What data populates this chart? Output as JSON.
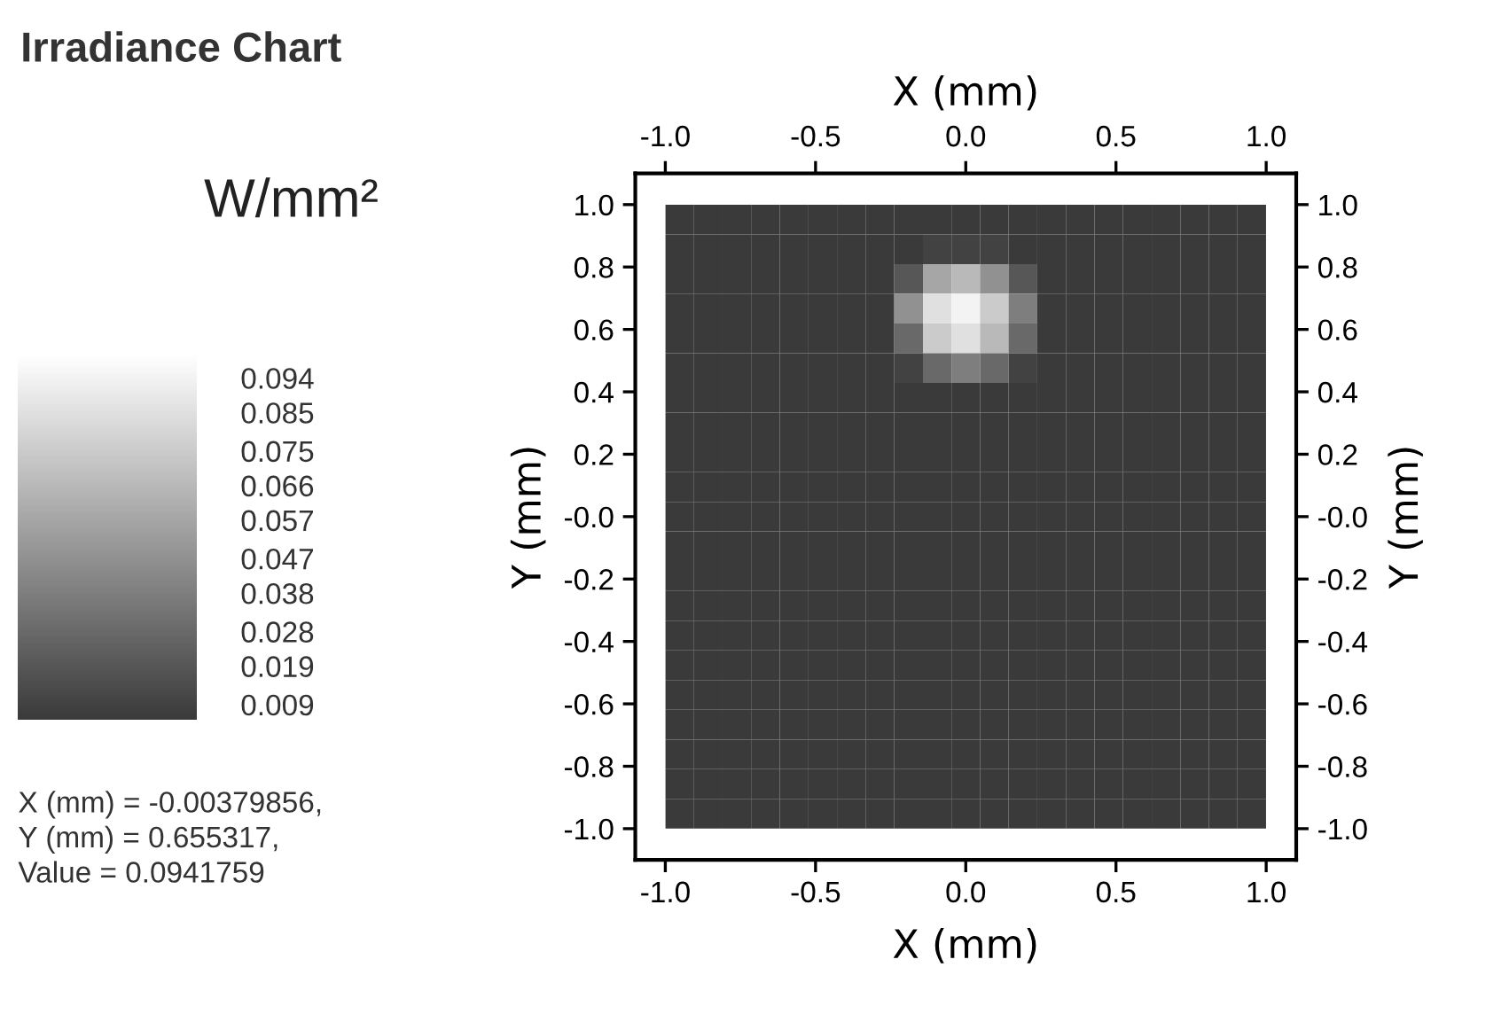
{
  "chart_data": {
    "type": "heatmap",
    "title": "Irradiance Chart",
    "xlabel": "X (mm)",
    "x2label": "X (mm)",
    "ylabel": "Y (mm)",
    "y2label": "Y (mm)",
    "clabel": "W/mm²",
    "x": [
      -0.952,
      -0.857,
      -0.762,
      -0.667,
      -0.571,
      -0.476,
      -0.381,
      -0.286,
      -0.19,
      -0.095,
      0.0,
      0.095,
      0.19,
      0.286,
      0.381,
      0.476,
      0.571,
      0.667,
      0.762,
      0.857,
      0.952
    ],
    "y": [
      0.952,
      0.857,
      0.762,
      0.667,
      0.571,
      0.476,
      0.381,
      0.286,
      0.19,
      0.095,
      0.0,
      -0.095,
      -0.19,
      -0.286,
      -0.381,
      -0.476,
      -0.571,
      -0.667,
      -0.762,
      -0.857,
      -0.952
    ],
    "cells": [
      [
        0.005,
        0.005,
        0.005,
        0.005,
        0.005,
        0.005,
        0.005,
        0.005,
        0.005,
        0.005,
        0.005,
        0.005,
        0.005,
        0.005,
        0.005,
        0.005,
        0.005,
        0.005,
        0.005,
        0.005,
        0.005
      ],
      [
        0.005,
        0.005,
        0.005,
        0.005,
        0.005,
        0.005,
        0.005,
        0.005,
        0.005,
        0.009,
        0.009,
        0.009,
        0.005,
        0.005,
        0.005,
        0.005,
        0.005,
        0.005,
        0.005,
        0.005,
        0.005
      ],
      [
        0.005,
        0.005,
        0.005,
        0.005,
        0.005,
        0.005,
        0.005,
        0.005,
        0.019,
        0.057,
        0.066,
        0.047,
        0.019,
        0.005,
        0.005,
        0.005,
        0.005,
        0.005,
        0.005,
        0.005,
        0.005
      ],
      [
        0.005,
        0.005,
        0.005,
        0.005,
        0.005,
        0.005,
        0.005,
        0.005,
        0.047,
        0.085,
        0.094,
        0.075,
        0.038,
        0.005,
        0.005,
        0.005,
        0.005,
        0.005,
        0.005,
        0.005,
        0.005
      ],
      [
        0.005,
        0.005,
        0.005,
        0.005,
        0.005,
        0.005,
        0.005,
        0.005,
        0.028,
        0.075,
        0.085,
        0.066,
        0.028,
        0.005,
        0.005,
        0.005,
        0.005,
        0.005,
        0.005,
        0.005,
        0.005
      ],
      [
        0.005,
        0.005,
        0.005,
        0.005,
        0.005,
        0.005,
        0.005,
        0.005,
        0.009,
        0.028,
        0.038,
        0.028,
        0.009,
        0.005,
        0.005,
        0.005,
        0.005,
        0.005,
        0.005,
        0.005,
        0.005
      ],
      [
        0.005,
        0.005,
        0.005,
        0.005,
        0.005,
        0.005,
        0.005,
        0.005,
        0.005,
        0.005,
        0.005,
        0.005,
        0.005,
        0.005,
        0.005,
        0.005,
        0.005,
        0.005,
        0.005,
        0.005,
        0.005
      ],
      [
        0.005,
        0.005,
        0.005,
        0.005,
        0.005,
        0.005,
        0.005,
        0.005,
        0.005,
        0.005,
        0.005,
        0.005,
        0.005,
        0.005,
        0.005,
        0.005,
        0.005,
        0.005,
        0.005,
        0.005,
        0.005
      ],
      [
        0.005,
        0.005,
        0.005,
        0.005,
        0.005,
        0.005,
        0.005,
        0.005,
        0.005,
        0.005,
        0.005,
        0.005,
        0.005,
        0.005,
        0.005,
        0.005,
        0.005,
        0.005,
        0.005,
        0.005,
        0.005
      ],
      [
        0.005,
        0.005,
        0.005,
        0.005,
        0.005,
        0.005,
        0.005,
        0.005,
        0.005,
        0.005,
        0.005,
        0.005,
        0.005,
        0.005,
        0.005,
        0.005,
        0.005,
        0.005,
        0.005,
        0.005,
        0.005
      ],
      [
        0.005,
        0.005,
        0.005,
        0.005,
        0.005,
        0.005,
        0.005,
        0.005,
        0.005,
        0.005,
        0.005,
        0.005,
        0.005,
        0.005,
        0.005,
        0.005,
        0.005,
        0.005,
        0.005,
        0.005,
        0.005
      ],
      [
        0.005,
        0.005,
        0.005,
        0.005,
        0.005,
        0.005,
        0.005,
        0.005,
        0.005,
        0.005,
        0.005,
        0.005,
        0.005,
        0.005,
        0.005,
        0.005,
        0.005,
        0.005,
        0.005,
        0.005,
        0.005
      ],
      [
        0.005,
        0.005,
        0.005,
        0.005,
        0.005,
        0.005,
        0.005,
        0.005,
        0.005,
        0.005,
        0.005,
        0.005,
        0.005,
        0.005,
        0.005,
        0.005,
        0.005,
        0.005,
        0.005,
        0.005,
        0.005
      ],
      [
        0.005,
        0.005,
        0.005,
        0.005,
        0.005,
        0.005,
        0.005,
        0.005,
        0.005,
        0.005,
        0.005,
        0.005,
        0.005,
        0.005,
        0.005,
        0.005,
        0.005,
        0.005,
        0.005,
        0.005,
        0.005
      ],
      [
        0.005,
        0.005,
        0.005,
        0.005,
        0.005,
        0.005,
        0.005,
        0.005,
        0.005,
        0.005,
        0.005,
        0.005,
        0.005,
        0.005,
        0.005,
        0.005,
        0.005,
        0.005,
        0.005,
        0.005,
        0.005
      ],
      [
        0.005,
        0.005,
        0.005,
        0.005,
        0.005,
        0.005,
        0.005,
        0.005,
        0.005,
        0.005,
        0.005,
        0.005,
        0.005,
        0.005,
        0.005,
        0.005,
        0.005,
        0.005,
        0.005,
        0.005,
        0.005
      ],
      [
        0.005,
        0.005,
        0.005,
        0.005,
        0.005,
        0.005,
        0.005,
        0.005,
        0.005,
        0.005,
        0.005,
        0.005,
        0.005,
        0.005,
        0.005,
        0.005,
        0.005,
        0.005,
        0.005,
        0.005,
        0.005
      ],
      [
        0.005,
        0.005,
        0.005,
        0.005,
        0.005,
        0.005,
        0.005,
        0.005,
        0.005,
        0.005,
        0.005,
        0.005,
        0.005,
        0.005,
        0.005,
        0.005,
        0.005,
        0.005,
        0.005,
        0.005,
        0.005
      ],
      [
        0.005,
        0.005,
        0.005,
        0.005,
        0.005,
        0.005,
        0.005,
        0.005,
        0.005,
        0.005,
        0.005,
        0.005,
        0.005,
        0.005,
        0.005,
        0.005,
        0.005,
        0.005,
        0.005,
        0.005,
        0.005
      ],
      [
        0.005,
        0.005,
        0.005,
        0.005,
        0.005,
        0.005,
        0.005,
        0.005,
        0.005,
        0.005,
        0.005,
        0.005,
        0.005,
        0.005,
        0.005,
        0.005,
        0.005,
        0.005,
        0.005,
        0.005,
        0.005
      ],
      [
        0.005,
        0.005,
        0.005,
        0.005,
        0.005,
        0.005,
        0.005,
        0.005,
        0.005,
        0.005,
        0.005,
        0.005,
        0.005,
        0.005,
        0.005,
        0.005,
        0.005,
        0.005,
        0.005,
        0.005,
        0.005
      ]
    ],
    "clim": [
      0.005,
      0.1
    ],
    "cticks": [
      0.009,
      0.019,
      0.028,
      0.038,
      0.047,
      0.057,
      0.066,
      0.075,
      0.085,
      0.094
    ],
    "xlim": [
      -1.1,
      1.1
    ],
    "ylim": [
      -1.1,
      1.1
    ],
    "x2lim": [
      -1.1,
      1.1
    ],
    "y2lim": [
      -1.1,
      1.1
    ],
    "xticks": [
      {
        "value": -1.0,
        "label": "-1.0"
      },
      {
        "value": -0.5,
        "label": "-0.5"
      },
      {
        "value": 0.0,
        "label": "0.0"
      },
      0.5,
      {
        "value": 1.0,
        "label": "1.0"
      }
    ],
    "x2ticks": [
      {
        "value": -1.0,
        "label": "-1.0"
      },
      {
        "value": -0.5,
        "label": "-0.5"
      },
      {
        "value": 0.0,
        "label": "0.0"
      },
      0.5,
      {
        "value": 1.0,
        "label": "1.0"
      }
    ],
    "yticks": [
      {
        "value": -1.0,
        "label": "-1.0"
      },
      {
        "value": -0.8,
        "label": "-0.8"
      },
      {
        "value": -0.6,
        "label": "-0.6"
      },
      {
        "value": -0.4,
        "label": "-0.4"
      },
      {
        "value": -0.2,
        "label": "-0.2"
      },
      {
        "value": 0.0,
        "label": "-0.0"
      },
      0.2,
      0.4,
      0.6,
      0.8,
      {
        "value": 1.0,
        "label": "1.0"
      }
    ],
    "y2ticks": [
      {
        "value": -1.0,
        "label": "-1.0"
      },
      {
        "value": -0.8,
        "label": "-0.8"
      },
      {
        "value": -0.6,
        "label": "-0.6"
      },
      {
        "value": -0.4,
        "label": "-0.4"
      },
      {
        "value": -0.2,
        "label": "-0.2"
      },
      {
        "value": 0.0,
        "label": "-0.0"
      },
      0.2,
      0.4,
      0.6,
      0.8,
      {
        "value": 1.0,
        "label": "1.0"
      }
    ],
    "annotations": [
      "X (mm) = -0.00379856,\nY (mm) = 0.655317,\nValue = 0.0941759"
    ]
  }
}
